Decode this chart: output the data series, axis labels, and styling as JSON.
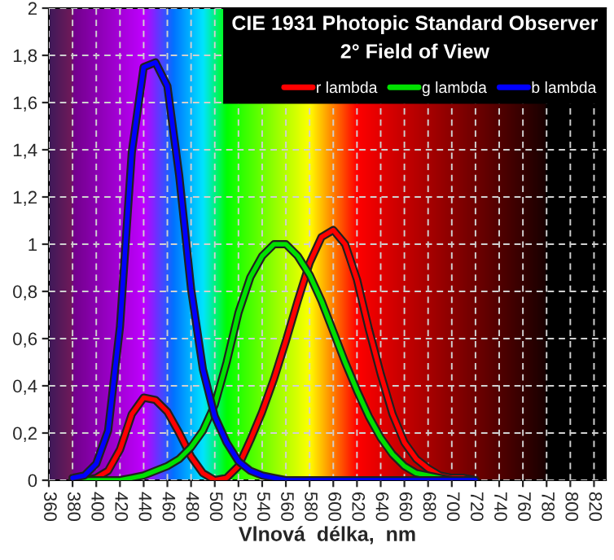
{
  "chart_data": {
    "type": "line",
    "title": "CIE 1931 Photopic Standard Observer",
    "subtitle": "2° Field of View",
    "xlabel": "Vlnová  délka,  nm",
    "x": [
      380,
      390,
      400,
      410,
      420,
      430,
      440,
      450,
      460,
      470,
      480,
      490,
      500,
      510,
      520,
      530,
      540,
      550,
      560,
      570,
      580,
      590,
      600,
      610,
      620,
      630,
      640,
      650,
      660,
      670,
      680,
      690,
      700,
      710,
      720
    ],
    "series": [
      {
        "name": "r lambda",
        "color": "#ff0000",
        "values": [
          0.0,
          0.0,
          0.01,
          0.04,
          0.13,
          0.28,
          0.35,
          0.34,
          0.29,
          0.2,
          0.1,
          0.03,
          0.0,
          0.01,
          0.06,
          0.17,
          0.29,
          0.43,
          0.59,
          0.76,
          0.92,
          1.03,
          1.06,
          1.0,
          0.85,
          0.64,
          0.45,
          0.28,
          0.16,
          0.09,
          0.05,
          0.02,
          0.01,
          0.01,
          0.0
        ]
      },
      {
        "name": "g lambda",
        "color": "#00e000",
        "values": [
          0.0,
          0.0,
          0.0,
          0.0,
          0.0,
          0.01,
          0.02,
          0.04,
          0.06,
          0.09,
          0.14,
          0.21,
          0.32,
          0.5,
          0.71,
          0.86,
          0.95,
          1.0,
          1.0,
          0.95,
          0.87,
          0.76,
          0.63,
          0.5,
          0.38,
          0.27,
          0.18,
          0.11,
          0.06,
          0.03,
          0.02,
          0.01,
          0.0,
          0.0,
          0.0
        ]
      },
      {
        "name": "b lambda",
        "color": "#0000ff",
        "values": [
          0.01,
          0.02,
          0.07,
          0.21,
          0.65,
          1.39,
          1.75,
          1.77,
          1.67,
          1.29,
          0.81,
          0.47,
          0.27,
          0.16,
          0.08,
          0.04,
          0.02,
          0.01,
          0.0,
          0.0,
          0.0,
          0.0,
          0.0,
          0.0,
          0.0,
          0.0,
          0.0,
          0.0,
          0.0,
          0.0,
          0.0,
          0.0,
          0.0,
          0.0,
          0.0
        ]
      }
    ],
    "xlim": [
      360,
      830
    ],
    "ylim": [
      0,
      2
    ],
    "xticks": [
      360,
      380,
      400,
      420,
      440,
      460,
      480,
      500,
      520,
      540,
      560,
      580,
      600,
      620,
      640,
      660,
      680,
      700,
      720,
      740,
      760,
      780,
      800,
      820
    ],
    "yticks": [
      0,
      {
        "value": 0.2,
        "label": "0,2"
      },
      {
        "value": 0.4,
        "label": "0,4"
      },
      {
        "value": 0.6,
        "label": "0,6"
      },
      {
        "value": 0.8,
        "label": "0,8"
      },
      1,
      {
        "value": 1.2,
        "label": "1,2"
      },
      {
        "value": 1.4,
        "label": "1,4"
      },
      {
        "value": 1.6,
        "label": "1,6"
      },
      {
        "value": 1.8,
        "label": "1,8"
      },
      2
    ],
    "grid": true,
    "legend": "top right",
    "marker": "none",
    "line_style": "solid"
  }
}
